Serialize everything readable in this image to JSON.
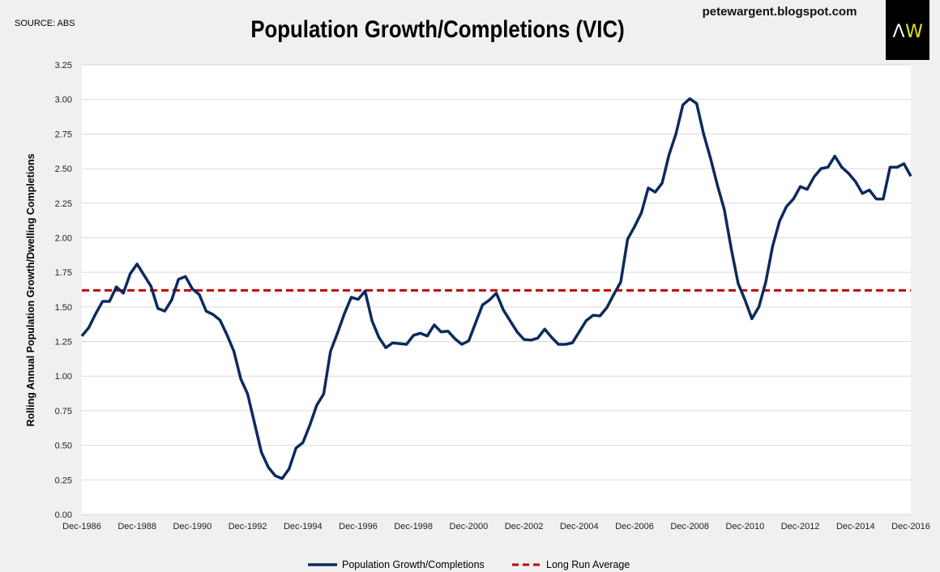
{
  "header": {
    "source": "SOURCE: ABS",
    "site": "petewargent.blogspot.com",
    "logo_text": "AW"
  },
  "colors": {
    "series": "#0d2a5e",
    "average": "#c00000",
    "grid": "#d9d9d9",
    "background": "#f0f0f0",
    "plot_background": "#ffffff",
    "logo_bg": "#000000",
    "logo_a": "#ffffff",
    "logo_w": "#e8e020"
  },
  "chart_data": {
    "type": "line",
    "title": "Population Growth/Completions (VIC)",
    "xlabel": "",
    "ylabel": "Rolling Annual Population Growth/Dwelling Completions",
    "ylim": [
      0,
      3.25
    ],
    "y_ticks": [
      "0.00",
      "0.25",
      "0.50",
      "0.75",
      "1.00",
      "1.25",
      "1.50",
      "1.75",
      "2.00",
      "2.25",
      "2.50",
      "2.75",
      "3.00",
      "3.25"
    ],
    "x_ticks": [
      "Dec-1986",
      "Dec-1988",
      "Dec-1990",
      "Dec-1992",
      "Dec-1994",
      "Dec-1996",
      "Dec-1998",
      "Dec-2000",
      "Dec-2002",
      "Dec-2004",
      "Dec-2006",
      "Dec-2008",
      "Dec-2010",
      "Dec-2012",
      "Dec-2014",
      "Dec-2016"
    ],
    "x_range": [
      "Dec-1986",
      "Dec-2016"
    ],
    "frequency": "quarterly",
    "grid": "horizontal",
    "legend_position": "bottom",
    "series": [
      {
        "name": "Population Growth/Completions",
        "style": "solid",
        "values": [
          1.29,
          1.35,
          1.45,
          1.54,
          1.54,
          1.645,
          1.6,
          1.74,
          1.81,
          1.73,
          1.65,
          1.49,
          1.47,
          1.55,
          1.7,
          1.72,
          1.63,
          1.59,
          1.47,
          1.445,
          1.405,
          1.3,
          1.18,
          0.98,
          0.87,
          0.66,
          0.45,
          0.34,
          0.28,
          0.26,
          0.33,
          0.48,
          0.52,
          0.645,
          0.79,
          0.87,
          1.18,
          1.31,
          1.45,
          1.57,
          1.555,
          1.615,
          1.4,
          1.28,
          1.205,
          1.24,
          1.235,
          1.23,
          1.295,
          1.31,
          1.29,
          1.37,
          1.32,
          1.325,
          1.27,
          1.23,
          1.255,
          1.385,
          1.515,
          1.55,
          1.6,
          1.48,
          1.4,
          1.32,
          1.265,
          1.26,
          1.275,
          1.34,
          1.28,
          1.23,
          1.23,
          1.24,
          1.32,
          1.4,
          1.44,
          1.435,
          1.495,
          1.59,
          1.68,
          1.99,
          2.08,
          2.18,
          2.36,
          2.33,
          2.395,
          2.6,
          2.75,
          2.96,
          3.005,
          2.97,
          2.75,
          2.575,
          2.38,
          2.205,
          1.92,
          1.67,
          1.55,
          1.415,
          1.5,
          1.68,
          1.94,
          2.12,
          2.225,
          2.28,
          2.37,
          2.35,
          2.44,
          2.5,
          2.51,
          2.59,
          2.51,
          2.465,
          2.405,
          2.32,
          2.345,
          2.28,
          2.28,
          2.51,
          2.51,
          2.535,
          2.445
        ]
      },
      {
        "name": "Long Run Average",
        "style": "dashed",
        "value": 1.62
      }
    ]
  }
}
